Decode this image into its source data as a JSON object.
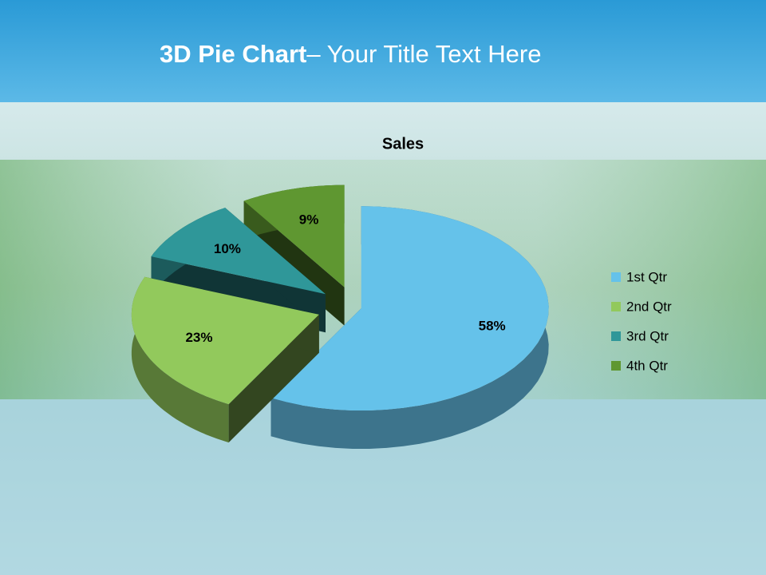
{
  "slide": {
    "title_bold": "3D Pie Chart",
    "title_rest": "– Your Title Text Here"
  },
  "chart_data": {
    "type": "pie",
    "title": "Sales",
    "categories": [
      "1st Qtr",
      "2nd Qtr",
      "3rd Qtr",
      "4th Qtr"
    ],
    "values": [
      58,
      23,
      10,
      9
    ],
    "value_labels": [
      "58%",
      "23%",
      "10%",
      "9%"
    ],
    "colors": [
      "#65c2ea",
      "#92c95c",
      "#2f9799",
      "#5f9731"
    ],
    "legend": "right"
  }
}
